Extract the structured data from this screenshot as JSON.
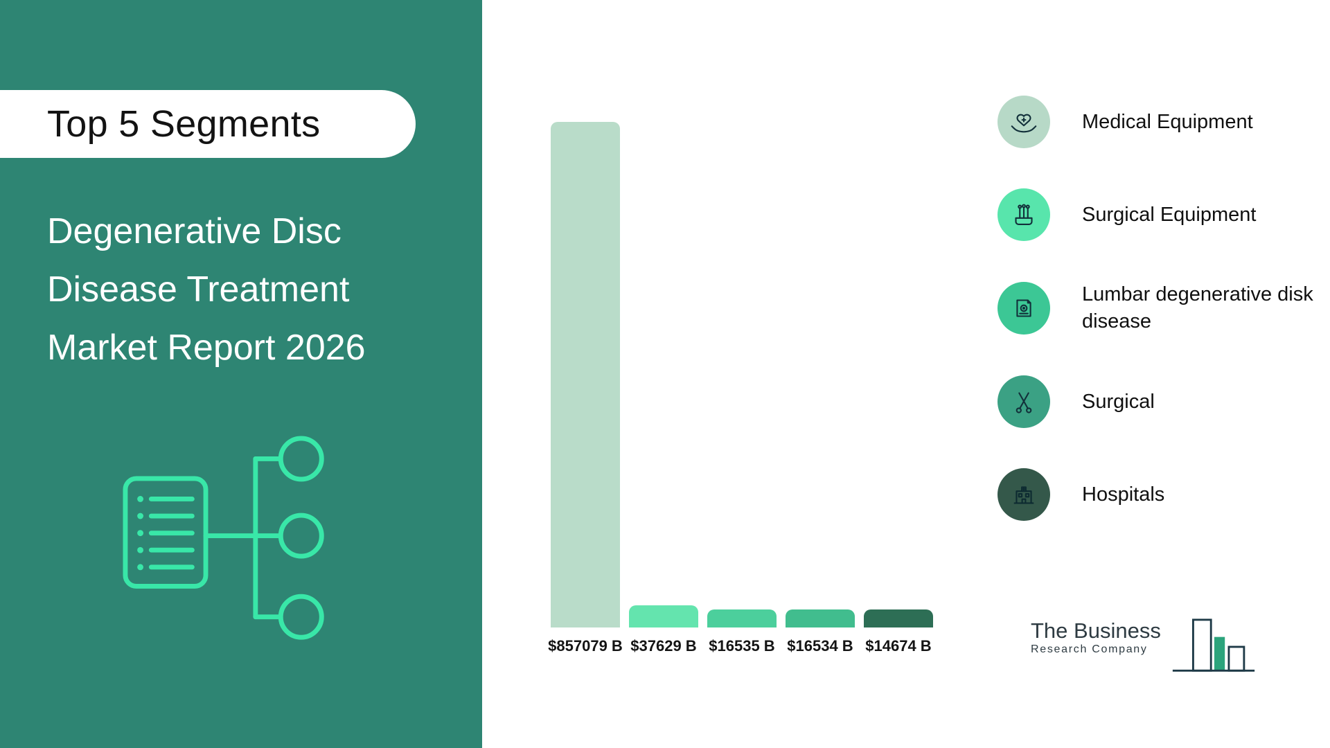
{
  "sidebar": {
    "badge": "Top 5 Segments",
    "title_lines": [
      "Degenerative Disc",
      "Disease Treatment",
      "Market Report 2026"
    ]
  },
  "chart_data": {
    "type": "bar",
    "title": "Top 5 Segments - Degenerative Disc Disease Treatment Market Report 2026",
    "categories": [
      "Medical Equipment",
      "Surgical Equipment",
      "Lumbar degenerative disk disease",
      "Surgical",
      "Hospitals"
    ],
    "values": [
      857079,
      37629,
      16535,
      16534,
      14674
    ],
    "labels": [
      "$857079 B",
      "$37629 B",
      "$16535 B",
      "$16534 B",
      "$14674 B"
    ],
    "unit": "$B",
    "ylim": [
      0,
      857079
    ],
    "grid": false,
    "legend_position": "right",
    "bar_colors": [
      "#b9dcc9",
      "#64e4ae",
      "#4ccf9c",
      "#41bd8e",
      "#2d6e55"
    ]
  },
  "legend": {
    "items": [
      {
        "label": "Medical Equipment",
        "color": "#b7d9c7",
        "icon": "heart-hands-icon"
      },
      {
        "label": "Surgical Equipment",
        "color": "#58e5ac",
        "icon": "surgical-tools-icon"
      },
      {
        "label": "Lumbar degenerative disk disease",
        "color": "#3cc795",
        "icon": "medical-record-icon"
      },
      {
        "label": "Surgical",
        "color": "#3ba184",
        "icon": "scissors-icon"
      },
      {
        "label": "Hospitals",
        "color": "#34584a",
        "icon": "hospital-icon"
      }
    ]
  },
  "logo": {
    "line1": "The Business",
    "line2": "Research Company"
  },
  "colors": {
    "sidebar_bg": "#2e8573",
    "accent": "#39e7a8"
  }
}
